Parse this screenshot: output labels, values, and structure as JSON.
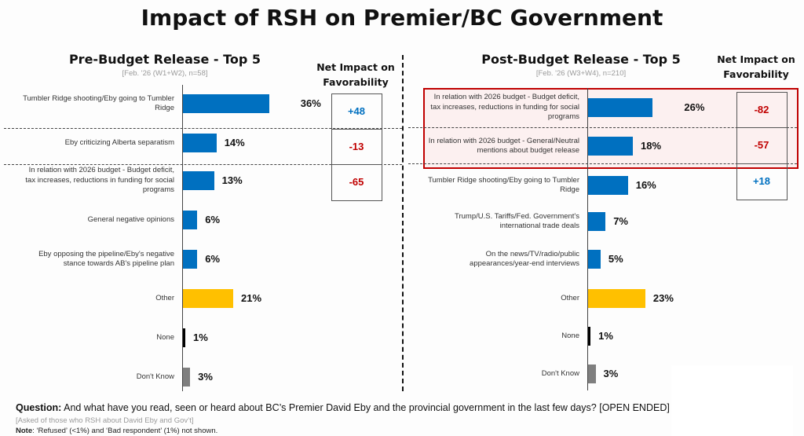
{
  "title": "Impact of RSH on Premier/BC Government",
  "colors": {
    "blue": "#0070c0",
    "gold": "#ffc000",
    "black": "#000000",
    "gray": "#7f7f7f",
    "positive": "#0070c0",
    "negative": "#c00000",
    "highlight_border": "#c00000"
  },
  "net_header": "Net Impact on Favorability",
  "chart_data": [
    {
      "type": "bar",
      "orientation": "horizontal",
      "title": "Pre-Budget Release - Top 5",
      "subtitle": "[Feb. '26 (W1+W2), n=58]",
      "unit": "%",
      "categories": [
        "Tumbler Ridge shooting/Eby going to Tumbler Ridge",
        "Eby criticizing Alberta separatism",
        "In relation with 2026 budget - Budget deficit, tax increases, reductions in funding for social programs",
        "General negative opinions",
        "Eby opposing the pipeline/Eby's negative stance towards AB's pipeline plan",
        "Other",
        "None",
        "Don't Know"
      ],
      "values": [
        36,
        14,
        13,
        6,
        6,
        21,
        1,
        3
      ],
      "labels": [
        "36%",
        "14%",
        "13%",
        "6%",
        "6%",
        "21%",
        "1%",
        "3%"
      ],
      "bar_colors": [
        "blue",
        "blue",
        "blue",
        "blue",
        "blue",
        "gold",
        "black",
        "gray"
      ],
      "net_impact": [
        {
          "category_index": 0,
          "value": 48,
          "label": "+48"
        },
        {
          "category_index": 1,
          "value": -13,
          "label": "-13"
        },
        {
          "category_index": 2,
          "value": -65,
          "label": "-65"
        }
      ]
    },
    {
      "type": "bar",
      "orientation": "horizontal",
      "title": "Post-Budget Release - Top 5",
      "subtitle": "[Feb. '26 (W3+W4), n=210]",
      "unit": "%",
      "categories": [
        "In relation with 2026 budget - Budget deficit, tax increases, reductions in funding for social programs",
        "In relation with 2026 budget - General/Neutral mentions about budget release",
        "Tumbler Ridge shooting/Eby going to Tumbler Ridge",
        "Trump/U.S. Tariffs/Fed. Government's international trade deals",
        "On the news/TV/radio/public appearances/year-end interviews",
        "Other",
        "None",
        "Don't Know"
      ],
      "values": [
        26,
        18,
        16,
        7,
        5,
        23,
        1,
        3
      ],
      "labels": [
        "26%",
        "18%",
        "16%",
        "7%",
        "5%",
        "23%",
        "1%",
        "3%"
      ],
      "bar_colors": [
        "blue",
        "blue",
        "blue",
        "blue",
        "blue",
        "gold",
        "black",
        "gray"
      ],
      "highlighted": [
        0,
        1
      ],
      "net_impact": [
        {
          "category_index": 0,
          "value": -82,
          "label": "-82"
        },
        {
          "category_index": 1,
          "value": -57,
          "label": "-57"
        },
        {
          "category_index": 2,
          "value": 18,
          "label": "+18"
        }
      ]
    }
  ],
  "footer": {
    "question_label": "Question:",
    "question_text": " And what have you read, seen or heard about BC’s Premier David Eby and the provincial government in the last few days? [OPEN ENDED]",
    "asked": "[Asked of those who RSH about David Eby and Gov’t]",
    "note_label": "Note",
    "note_text": ": ‘Refused’ (<1%) and ‘Bad respondent’ (1%) not shown."
  }
}
